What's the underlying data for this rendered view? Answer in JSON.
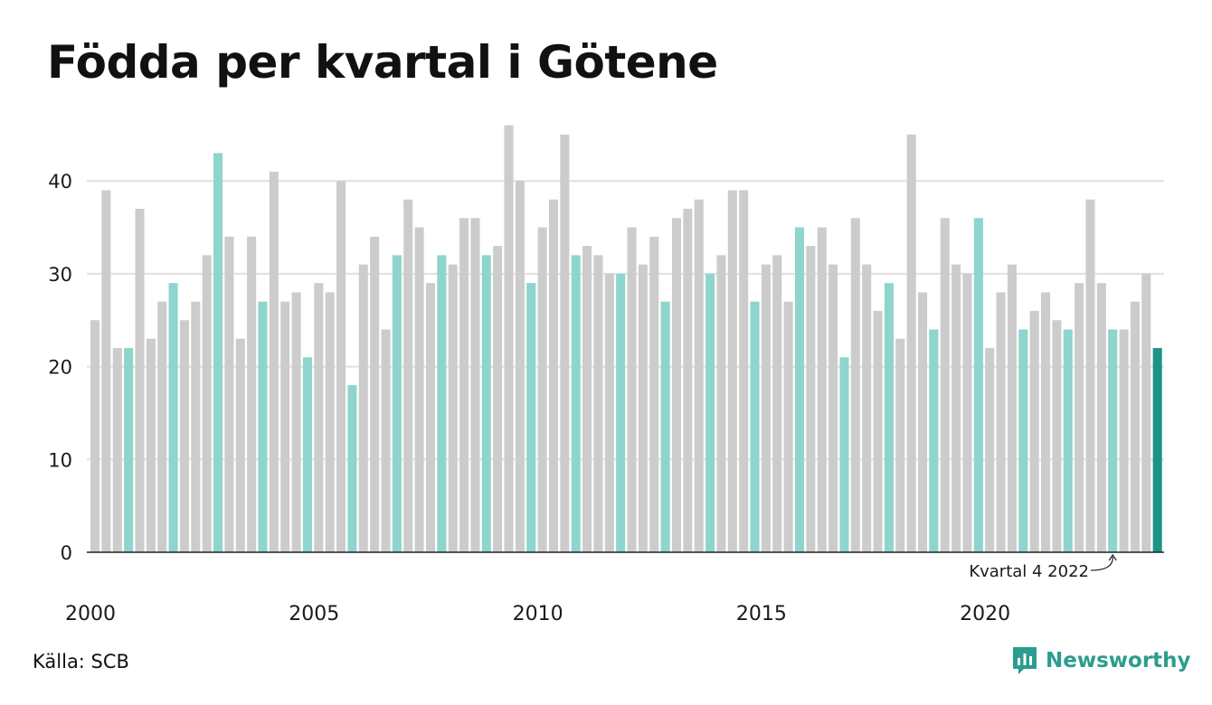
{
  "title": "Födda per kvartal i Götene",
  "source": "Källa: SCB",
  "brand": {
    "name": "Newsworthy",
    "icon": "newsworthy-logo-icon",
    "color": "#2a9d8f"
  },
  "chart_data": {
    "type": "bar",
    "title": "Födda per kvartal i Götene",
    "x_tick_labels": [
      "2000",
      "2005",
      "2010",
      "2015",
      "2020"
    ],
    "y_ticks": [
      0,
      10,
      20,
      30,
      40
    ],
    "ylim": [
      0,
      46
    ],
    "grid": "horizontal",
    "colors": {
      "default": "#cccccc",
      "q4": "#8dd5cd",
      "latest": "#1d9384"
    },
    "annotation": {
      "text": "Kvartal 4 2022",
      "target_index": 91
    },
    "latest_index": 95,
    "categories": [
      "2000 Q1",
      "2000 Q2",
      "2000 Q3",
      "2000 Q4",
      "2001 Q1",
      "2001 Q2",
      "2001 Q3",
      "2001 Q4",
      "2002 Q1",
      "2002 Q2",
      "2002 Q3",
      "2002 Q4",
      "2003 Q1",
      "2003 Q2",
      "2003 Q3",
      "2003 Q4",
      "2004 Q1",
      "2004 Q2",
      "2004 Q3",
      "2004 Q4",
      "2005 Q1",
      "2005 Q2",
      "2005 Q3",
      "2005 Q4",
      "2006 Q1",
      "2006 Q2",
      "2006 Q3",
      "2006 Q4",
      "2007 Q1",
      "2007 Q2",
      "2007 Q3",
      "2007 Q4",
      "2008 Q1",
      "2008 Q2",
      "2008 Q3",
      "2008 Q4",
      "2009 Q1",
      "2009 Q2",
      "2009 Q3",
      "2009 Q4",
      "2010 Q1",
      "2010 Q2",
      "2010 Q3",
      "2010 Q4",
      "2011 Q1",
      "2011 Q2",
      "2011 Q3",
      "2011 Q4",
      "2012 Q1",
      "2012 Q2",
      "2012 Q3",
      "2012 Q4",
      "2013 Q1",
      "2013 Q2",
      "2013 Q3",
      "2013 Q4",
      "2014 Q1",
      "2014 Q2",
      "2014 Q3",
      "2014 Q4",
      "2015 Q1",
      "2015 Q2",
      "2015 Q3",
      "2015 Q4",
      "2016 Q1",
      "2016 Q2",
      "2016 Q3",
      "2016 Q4",
      "2017 Q1",
      "2017 Q2",
      "2017 Q3",
      "2017 Q4",
      "2018 Q1",
      "2018 Q2",
      "2018 Q3",
      "2018 Q4",
      "2019 Q1",
      "2019 Q2",
      "2019 Q3",
      "2019 Q4",
      "2020 Q1",
      "2020 Q2",
      "2020 Q3",
      "2020 Q4",
      "2021 Q1",
      "2021 Q2",
      "2021 Q3",
      "2021 Q4",
      "2022 Q1",
      "2022 Q2",
      "2022 Q3",
      "2022 Q4",
      "2023 Q1",
      "2023 Q2",
      "2023 Q3",
      "2023 Q4"
    ],
    "values": [
      25,
      39,
      22,
      22,
      37,
      23,
      27,
      29,
      25,
      27,
      32,
      43,
      34,
      23,
      34,
      27,
      41,
      27,
      28,
      21,
      29,
      28,
      40,
      18,
      31,
      34,
      24,
      32,
      38,
      35,
      29,
      32,
      31,
      36,
      36,
      32,
      33,
      46,
      40,
      29,
      35,
      38,
      45,
      32,
      33,
      32,
      30,
      30,
      35,
      31,
      34,
      27,
      36,
      37,
      38,
      30,
      32,
      39,
      39,
      27,
      31,
      32,
      27,
      35,
      33,
      35,
      31,
      21,
      36,
      31,
      26,
      29,
      23,
      45,
      28,
      24,
      36,
      31,
      30,
      36,
      22,
      28,
      31,
      24,
      26,
      28,
      25,
      24,
      29,
      38,
      29,
      24,
      24,
      27,
      30,
      22
    ]
  }
}
